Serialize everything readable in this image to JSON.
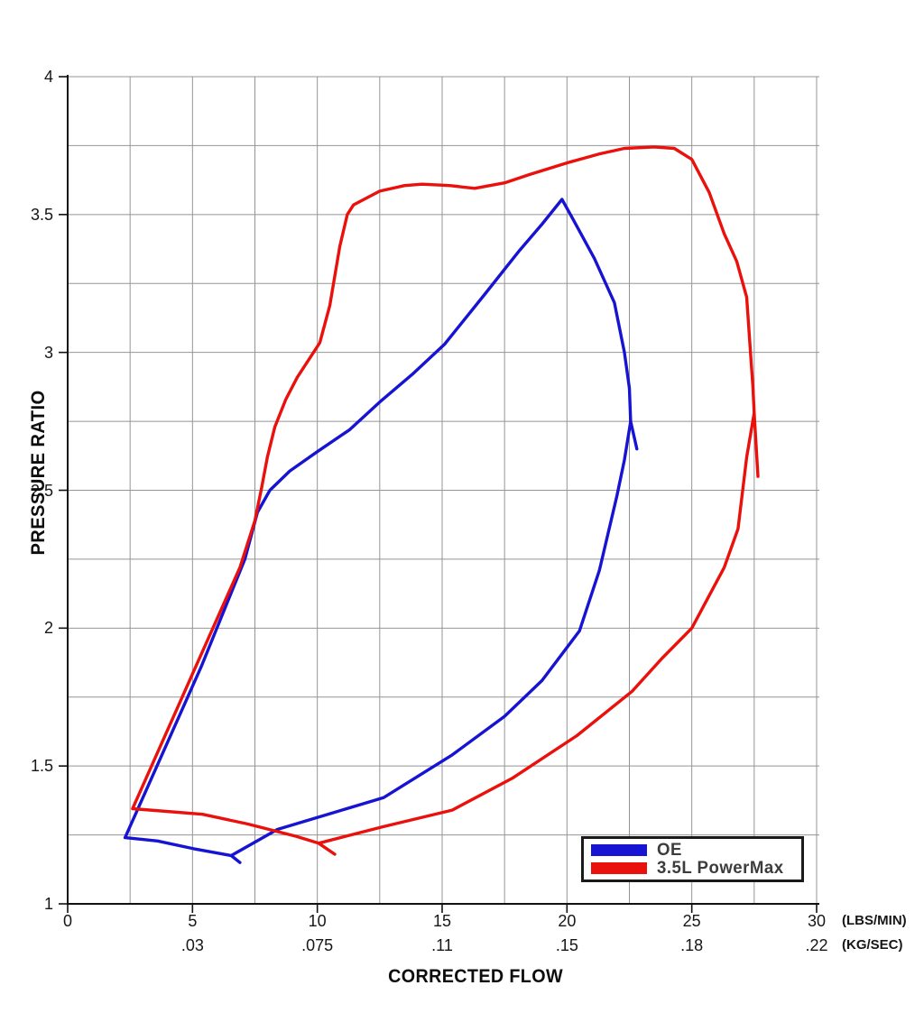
{
  "labels": {
    "y_axis_title": "PRESSURE RATIO",
    "x_axis_title": "CORRECTED FLOW",
    "x_unit_primary": "(LBS/MIN)",
    "x_unit_secondary": "(KG/SEC)"
  },
  "legend": {
    "items": [
      {
        "label": "OE",
        "color": "#1713d2"
      },
      {
        "label": "3.5L PowerMax",
        "color": "#ea100c"
      }
    ]
  },
  "chart_data": {
    "type": "line",
    "title": "",
    "xlabel": "CORRECTED FLOW",
    "ylabel": "PRESSURE RATIO",
    "xlim": [
      0,
      30
    ],
    "ylim": [
      1,
      4
    ],
    "x_units": [
      "LBS/MIN",
      "KG/SEC"
    ],
    "grid": {
      "on": true,
      "x_step": 2.5,
      "y_step": 0.25,
      "color": "#959595"
    },
    "legend_position": "bottom-right-inside",
    "x_ticks": {
      "values": [
        0,
        5,
        10,
        15,
        20,
        25,
        30
      ],
      "labels_lbs_min": [
        "0",
        "5",
        "10",
        "15",
        "20",
        "25",
        "30"
      ],
      "labels_kg_sec": [
        "",
        ".03",
        ".075",
        ".11",
        ".15",
        ".18",
        ".22"
      ]
    },
    "y_ticks": {
      "values": [
        4,
        3.5,
        3,
        2.5,
        2,
        1.5,
        1
      ],
      "labels": [
        "4",
        "3.5",
        "3",
        "2.5",
        "2",
        "1.5",
        "1"
      ]
    },
    "series": [
      {
        "name": "OE",
        "color": "#1713d2",
        "segments": [
          [
            [
              6.9,
              1.15
            ],
            [
              6.55,
              1.175
            ],
            [
              5.05,
              1.2
            ],
            [
              3.6,
              1.228
            ],
            [
              2.3,
              1.24
            ],
            [
              5.35,
              1.86
            ],
            [
              7.1,
              2.25
            ],
            [
              7.6,
              2.42
            ],
            [
              8.1,
              2.5
            ],
            [
              8.9,
              2.57
            ],
            [
              10.0,
              2.64
            ],
            [
              11.3,
              2.72
            ],
            [
              12.5,
              2.82
            ],
            [
              13.8,
              2.92
            ],
            [
              15.1,
              3.03
            ],
            [
              16.7,
              3.21
            ],
            [
              18.1,
              3.37
            ],
            [
              19.0,
              3.465
            ],
            [
              19.8,
              3.555
            ],
            [
              20.2,
              3.49
            ],
            [
              21.1,
              3.34
            ],
            [
              21.9,
              3.18
            ],
            [
              22.3,
              3.0
            ],
            [
              22.5,
              2.87
            ],
            [
              22.55,
              2.75
            ],
            [
              22.8,
              2.65
            ]
          ],
          [
            [
              6.55,
              1.175
            ],
            [
              8.4,
              1.27
            ],
            [
              10.8,
              1.335
            ],
            [
              12.65,
              1.385
            ],
            [
              15.4,
              1.54
            ],
            [
              17.5,
              1.68
            ],
            [
              19.0,
              1.81
            ],
            [
              20.5,
              1.99
            ],
            [
              21.3,
              2.21
            ],
            [
              22.0,
              2.48
            ],
            [
              22.3,
              2.61
            ],
            [
              22.55,
              2.75
            ]
          ]
        ]
      },
      {
        "name": "3.5L PowerMax",
        "color": "#ea100c",
        "segments": [
          [
            [
              10.7,
              1.18
            ],
            [
              10.05,
              1.22
            ],
            [
              9.15,
              1.245
            ],
            [
              7.2,
              1.29
            ],
            [
              5.4,
              1.325
            ],
            [
              2.6,
              1.345
            ],
            [
              5.13,
              1.86
            ],
            [
              6.9,
              2.22
            ],
            [
              7.5,
              2.39
            ],
            [
              7.77,
              2.51
            ],
            [
              8.0,
              2.62
            ],
            [
              8.3,
              2.73
            ],
            [
              8.74,
              2.83
            ],
            [
              9.2,
              2.91
            ],
            [
              10.1,
              3.035
            ],
            [
              10.5,
              3.17
            ],
            [
              10.9,
              3.385
            ],
            [
              11.2,
              3.5
            ],
            [
              11.45,
              3.535
            ],
            [
              12.5,
              3.585
            ],
            [
              13.5,
              3.605
            ],
            [
              14.2,
              3.61
            ],
            [
              15.3,
              3.605
            ],
            [
              16.3,
              3.595
            ],
            [
              17.5,
              3.615
            ],
            [
              18.5,
              3.645
            ],
            [
              20.1,
              3.69
            ],
            [
              21.3,
              3.72
            ],
            [
              22.3,
              3.74
            ],
            [
              23.5,
              3.745
            ],
            [
              24.3,
              3.74
            ],
            [
              25.0,
              3.7
            ],
            [
              25.7,
              3.58
            ],
            [
              26.3,
              3.43
            ],
            [
              26.8,
              3.33
            ],
            [
              27.2,
              3.2
            ],
            [
              27.35,
              3.0
            ],
            [
              27.45,
              2.87
            ],
            [
              27.5,
              2.78
            ],
            [
              27.65,
              2.55
            ]
          ],
          [
            [
              10.05,
              1.22
            ],
            [
              12.65,
              1.28
            ],
            [
              15.4,
              1.34
            ],
            [
              17.8,
              1.455
            ],
            [
              20.4,
              1.61
            ],
            [
              22.6,
              1.77
            ],
            [
              23.8,
              1.89
            ],
            [
              25.0,
              2.0
            ],
            [
              26.3,
              2.22
            ],
            [
              26.85,
              2.36
            ],
            [
              27.2,
              2.62
            ],
            [
              27.5,
              2.78
            ]
          ]
        ]
      }
    ]
  }
}
